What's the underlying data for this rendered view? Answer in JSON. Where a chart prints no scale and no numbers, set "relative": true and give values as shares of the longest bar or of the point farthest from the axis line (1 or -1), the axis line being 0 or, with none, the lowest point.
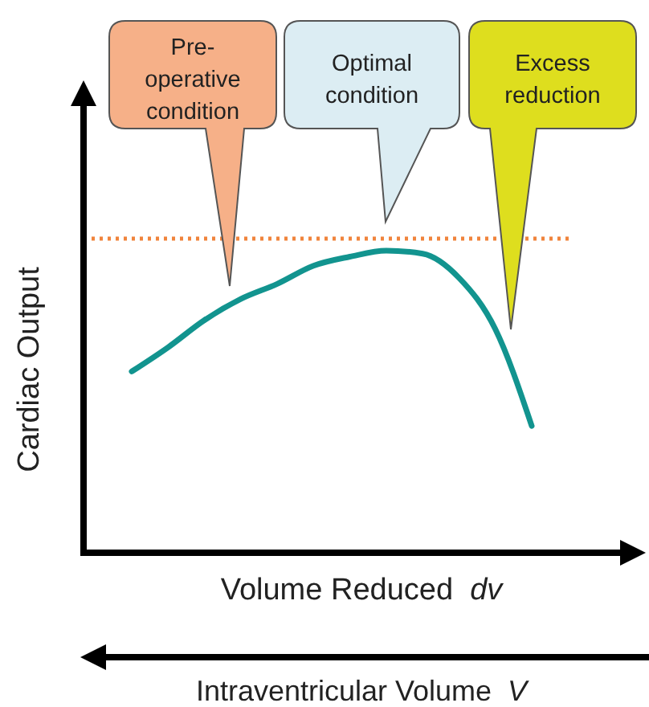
{
  "chart_data": {
    "type": "line",
    "relative": true,
    "ylabel": "Cardiac Output",
    "xlabel": "Volume Reduced  dv",
    "categories": [
      null,
      null,
      null,
      null,
      null,
      null,
      null,
      null,
      null,
      null,
      null,
      null
    ],
    "series": [
      {
        "color": "#12948f",
        "values": [
          0.6,
          0.68,
          0.77,
          0.84,
          0.89,
          0.95,
          0.98,
          1.0,
          0.99,
          0.91,
          0.74,
          0.42
        ]
      }
    ],
    "ref_lines": [
      {
        "axis": "y",
        "value": 1.04,
        "color": "#f0843c",
        "line_style": "dotted"
      }
    ],
    "annotations": [
      "Pre- operative condition",
      "Optimal condition",
      "Excess reduction",
      "Intraventricular Volume  V"
    ],
    "grid": false,
    "marker": "none",
    "line_style": "solid"
  }
}
